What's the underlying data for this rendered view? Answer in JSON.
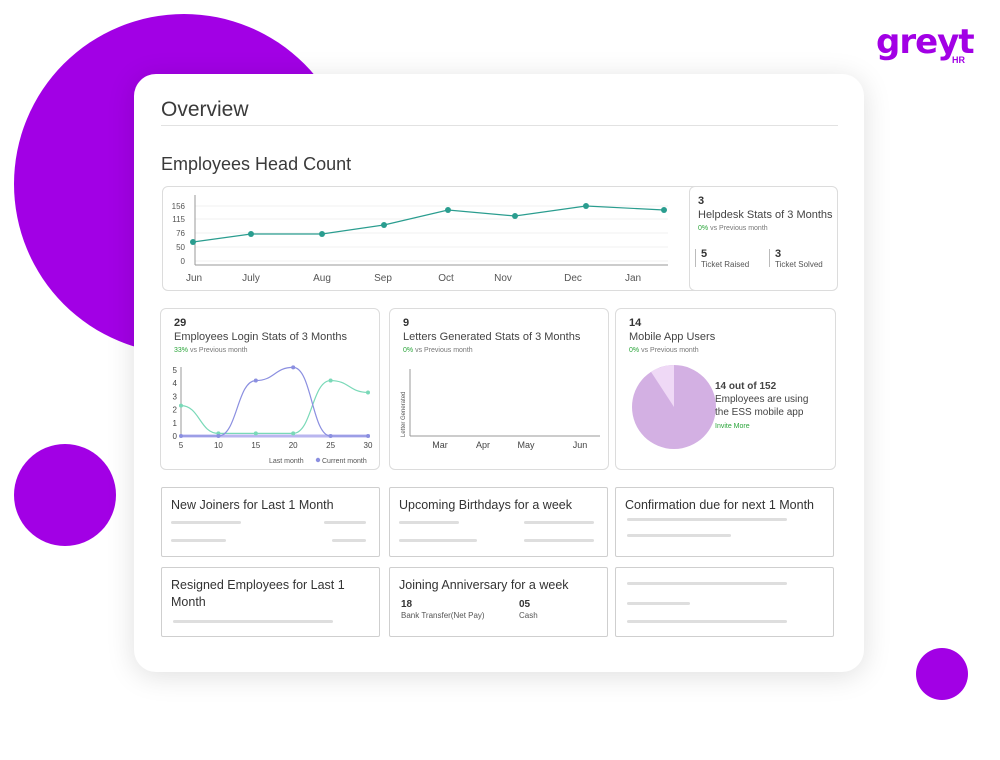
{
  "brand": {
    "logo_word": "greyt",
    "logo_sub": "HR",
    "accent": "#a200e5"
  },
  "overview": {
    "title": "Overview",
    "section_title": "Employees Head Count"
  },
  "headcount_chart": {
    "type": "line",
    "x": [
      "Jun",
      "July",
      "Aug",
      "Sep",
      "Oct",
      "Nov",
      "Dec",
      "Jan"
    ],
    "y_ticks": [
      "156",
      "115",
      "76",
      "50",
      "0"
    ],
    "values": [
      64,
      79,
      79,
      91,
      110,
      104,
      116,
      113
    ],
    "color": "#2a9d8f"
  },
  "helpdesk": {
    "count": "3",
    "label": "Helpdesk Stats of 3 Months",
    "change_pct": "0%",
    "change_text": "vs Previous month",
    "ticket_raised_value": "5",
    "ticket_raised_label": "Ticket Raised",
    "ticket_solved_value": "3",
    "ticket_solved_label": "Ticket Solved"
  },
  "login": {
    "count": "29",
    "label": "Employees Login Stats of 3 Months",
    "change_pct": "33%",
    "change_text": "vs Previous month",
    "chart_data": {
      "type": "line",
      "x_ticks": [
        "5",
        "10",
        "15",
        "20",
        "25",
        "30"
      ],
      "y_ticks": [
        "5",
        "4",
        "3",
        "2",
        "1",
        "0"
      ],
      "series": [
        {
          "name": "Last month",
          "color": "#7ad9b8",
          "x": [
            5,
            10,
            15,
            20,
            25,
            30
          ],
          "y": [
            2.3,
            0.2,
            0.2,
            0.2,
            4.2,
            3.3
          ]
        },
        {
          "name": "Current month",
          "color": "#8b8fe0",
          "x": [
            5,
            10,
            15,
            20,
            25,
            30
          ],
          "y": [
            0,
            0,
            4.2,
            5.2,
            0,
            0
          ]
        }
      ],
      "legend": [
        "Last month",
        "Current month"
      ]
    }
  },
  "letters": {
    "count": "9",
    "label": "Letters Generated Stats of 3 Months",
    "change_pct": "0%",
    "change_text": "vs Previous month",
    "y_label": "Letter Generated",
    "x_ticks": [
      "Mar",
      "Apr",
      "May",
      "Jun"
    ]
  },
  "mobile": {
    "count": "14",
    "label": "Mobile App Users",
    "change_pct": "0%",
    "change_text": "vs Previous month",
    "users": 14,
    "total": 152,
    "summary_bold": "14 out of 152",
    "summary_line1": "Employees are using",
    "summary_line2": "the ESS mobile app",
    "invite": "Invite More",
    "pie_main_color": "#d3b0e3",
    "pie_slice_color": "#efd9f6"
  },
  "lists": {
    "new_joiners": "New Joiners for Last 1 Month",
    "birthdays": "Upcoming Birthdays for a week",
    "confirmation": "Confirmation due for next 1 Month",
    "resigned_line1": "Resigned Employees for Last 1",
    "resigned_line2": "Month",
    "anniversary": "Joining Anniversary for a week",
    "anniv_value1": "18",
    "anniv_label1": "Bank Transfer(Net Pay)",
    "anniv_value2": "05",
    "anniv_label2": "Cash"
  }
}
